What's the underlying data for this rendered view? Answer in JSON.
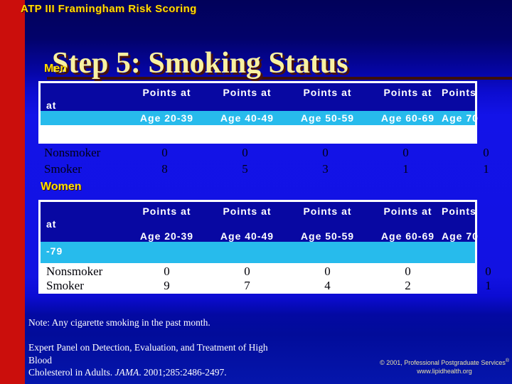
{
  "slide": {
    "corner_heading": "ATP III Framingham Risk Scoring",
    "title": "Step 5: Smoking Status"
  },
  "colors": {
    "background_top": "#01015a",
    "background_mid": "#1313e8",
    "left_bar_red": "#cb0e0c",
    "heading_yellow": "#ffdf00",
    "title_yellow": "#f8f1a2",
    "title_shadow_maroon": "#4a120b",
    "table_header_blue": "#0808a2",
    "table_band_cyan": "#27bbec",
    "table_band_white": "#ffffff"
  },
  "table_template": {
    "points_headers": [
      "Points at",
      "Points at",
      "Points at",
      "Points at",
      "Points"
    ],
    "points_wrap": "at",
    "age_headers": [
      "Age 20-39",
      "Age 40-49",
      "Age 50-59",
      "Age 60-69",
      "Age 70"
    ],
    "age_wrap": "-79"
  },
  "men": {
    "label": "Men",
    "rows": [
      {
        "label": "Nonsmoker",
        "values": [
          "0",
          "0",
          "0",
          "0",
          "0"
        ]
      },
      {
        "label": "Smoker",
        "values": [
          "8",
          "5",
          "3",
          "1",
          "1"
        ]
      }
    ]
  },
  "women": {
    "label": "Women",
    "rows": [
      {
        "label": "Nonsmoker",
        "values": [
          "0",
          "0",
          "0",
          "0",
          "0"
        ]
      },
      {
        "label": "Smoker",
        "values": [
          "9",
          "7",
          "4",
          "2",
          "1"
        ]
      }
    ]
  },
  "footer": {
    "note": "Note: Any cigarette smoking in the past month.",
    "citation_line1": "Expert Panel on Detection, Evaluation, and Treatment of High Blood",
    "citation_line2_pre": "Cholesterol in Adults. ",
    "citation_line2_italic": "JAMA",
    "citation_line2_post": ". 2001;285:2486-2497.",
    "copyright_text": "© 2001, Professional Postgraduate Services",
    "copyright_reg": "®",
    "website": "www.lipidhealth.org"
  }
}
